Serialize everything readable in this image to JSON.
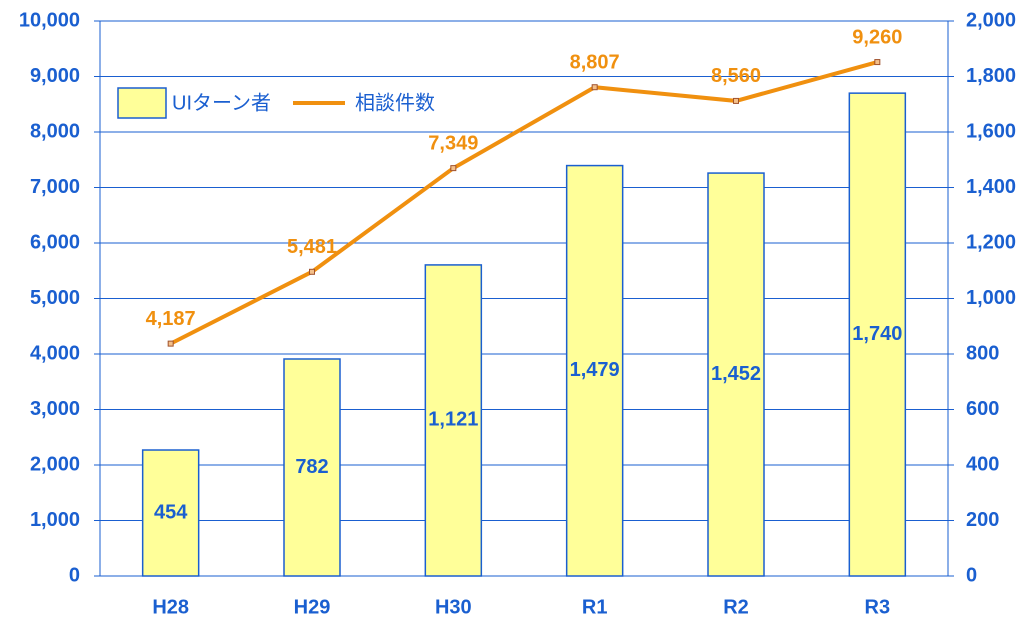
{
  "chart_data": {
    "type": "bar-line",
    "categories": [
      "H28",
      "H29",
      "H30",
      "R1",
      "R2",
      "R3"
    ],
    "series": [
      {
        "name": "UIターン者",
        "type": "bar",
        "axis": "y2",
        "color": "#ffff99",
        "values": [
          454,
          782,
          1121,
          1479,
          1452,
          1740
        ],
        "value_labels": [
          "454",
          "782",
          "1,121",
          "1,479",
          "1,452",
          "1,740"
        ]
      },
      {
        "name": "相談件数",
        "type": "line",
        "color": "#f0900f",
        "values": [
          4187,
          5481,
          7349,
          8807,
          8560,
          9260
        ],
        "value_labels": [
          "4,187",
          "5,481",
          "7,349",
          "8,807",
          "8,560",
          "9,260"
        ]
      }
    ],
    "ylim": [
      0,
      10000
    ],
    "yticks": [
      0,
      {
        "value": 1000,
        "label": "1,000"
      },
      {
        "value": 2000,
        "label": "2,000"
      },
      {
        "value": 3000,
        "label": "3,000"
      },
      {
        "value": 4000,
        "label": "4,000"
      },
      {
        "value": 5000,
        "label": "5,000"
      },
      {
        "value": 6000,
        "label": "6,000"
      },
      {
        "value": 7000,
        "label": "7,000"
      },
      {
        "value": 8000,
        "label": "8,000"
      },
      {
        "value": 9000,
        "label": "9,000"
      },
      {
        "value": 10000,
        "label": "10,000"
      }
    ],
    "y2lim": [
      0,
      2000
    ],
    "y2ticks": [
      0,
      200,
      400,
      600,
      800,
      {
        "value": 1000,
        "label": "1,000"
      },
      {
        "value": 1200,
        "label": "1,200"
      },
      {
        "value": 1400,
        "label": "1,400"
      },
      {
        "value": 1600,
        "label": "1,600"
      },
      {
        "value": 1800,
        "label": "1,800"
      },
      {
        "value": 2000,
        "label": "2,000"
      }
    ],
    "grid": true
  }
}
